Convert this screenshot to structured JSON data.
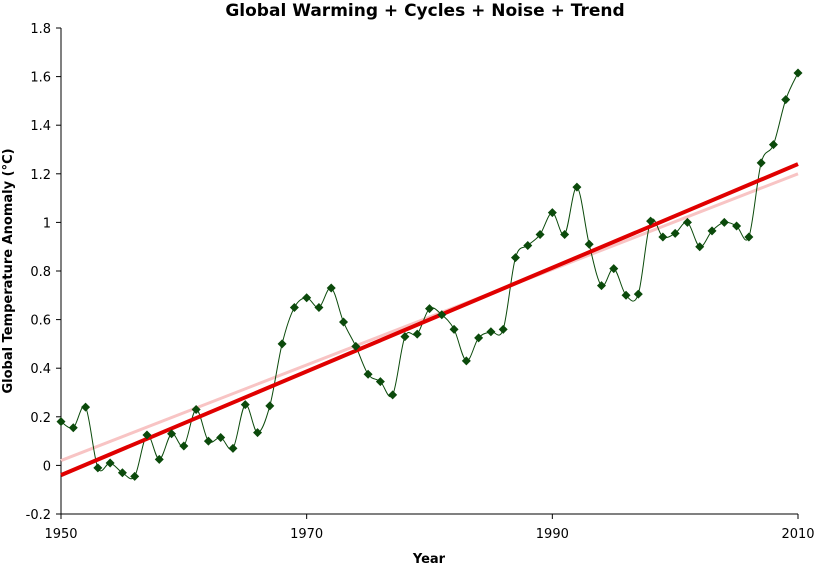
{
  "chart_data": {
    "type": "line",
    "title": "Global Warming + Cycles + Noise + Trend",
    "xlabel": "Year",
    "ylabel": "Global Temperature Anomaly (°C)",
    "xlim": [
      1950,
      2010
    ],
    "ylim": [
      -0.2,
      1.8
    ],
    "x_ticks": [
      "1950",
      "1970",
      "1990",
      "2010"
    ],
    "y_ticks": [
      "-0.2",
      "0",
      "0.2",
      "0.4",
      "0.6",
      "0.8",
      "1",
      "1.2",
      "1.4",
      "1.6",
      "1.8"
    ],
    "grid": false,
    "legend": "none",
    "series": [
      {
        "style": "smoothed line with diamond markers",
        "color": "#0b4a0b",
        "x": [
          1950,
          1951,
          1952,
          1953,
          1954,
          1955,
          1956,
          1957,
          1958,
          1959,
          1960,
          1961,
          1962,
          1963,
          1964,
          1965,
          1966,
          1967,
          1968,
          1969,
          1970,
          1971,
          1972,
          1973,
          1974,
          1975,
          1976,
          1977,
          1978,
          1979,
          1980,
          1981,
          1982,
          1983,
          1984,
          1985,
          1986,
          1987,
          1988,
          1989,
          1990,
          1991,
          1992,
          1993,
          1994,
          1995,
          1996,
          1997,
          1998,
          1999,
          2000,
          2001,
          2002,
          2003,
          2004,
          2005,
          2006,
          2007,
          2008,
          2009,
          2010
        ],
        "y": [
          0.18,
          0.155,
          0.24,
          -0.01,
          0.01,
          -0.03,
          -0.045,
          0.125,
          0.025,
          0.13,
          0.08,
          0.23,
          0.1,
          0.115,
          0.07,
          0.25,
          0.135,
          0.245,
          0.5,
          0.65,
          0.69,
          0.65,
          0.73,
          0.59,
          0.49,
          0.375,
          0.345,
          0.29,
          0.53,
          0.54,
          0.645,
          0.62,
          0.56,
          0.43,
          0.525,
          0.55,
          0.56,
          0.855,
          0.905,
          0.95,
          1.04,
          0.95,
          1.145,
          0.91,
          0.74,
          0.81,
          0.7,
          0.705,
          1.005,
          0.94,
          0.955,
          1.0,
          0.9,
          0.965,
          1.0,
          0.985,
          0.94,
          1.245,
          1.32,
          1.505,
          1.615
        ]
      },
      {
        "style": "trend line",
        "color": "#e00000",
        "x": [
          1950,
          2010
        ],
        "y": [
          -0.04,
          1.24
        ]
      },
      {
        "style": "faint trend line",
        "color": "#f8c4c4",
        "x": [
          1950,
          2010
        ],
        "y": [
          0.02,
          1.2
        ]
      }
    ]
  }
}
